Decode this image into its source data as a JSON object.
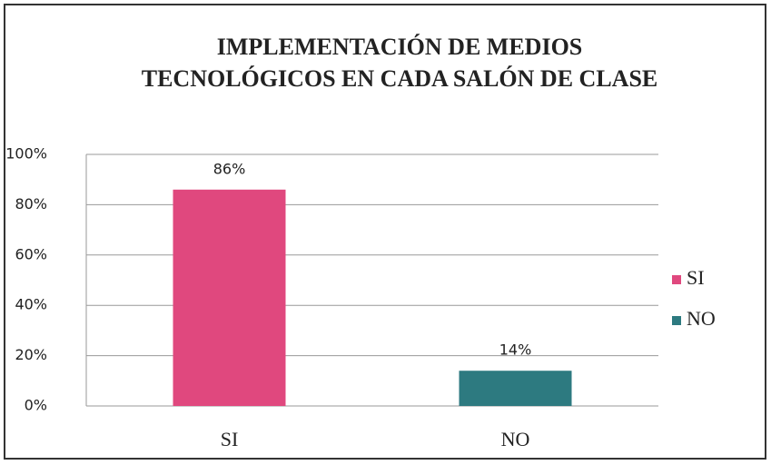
{
  "chart_data": {
    "type": "bar",
    "title": "IMPLEMENTACIÓN DE MEDIOS TECNOLÓGICOS EN CADA SALÓN DE CLASE",
    "categories": [
      "SI",
      "NO"
    ],
    "values": [
      86,
      14
    ],
    "value_labels": [
      "86%",
      "14%"
    ],
    "colors": [
      "#e0487e",
      "#2d7a80"
    ],
    "ylim": [
      0,
      100
    ],
    "yticks": [
      {
        "value": 0,
        "label": "0%"
      },
      {
        "value": 20,
        "label": "20%"
      },
      {
        "value": 40,
        "label": "40%"
      },
      {
        "value": 60,
        "label": "60%"
      },
      {
        "value": 80,
        "label": "80%"
      },
      {
        "value": 100,
        "label": "100%"
      }
    ],
    "grid": true,
    "legend": "right"
  }
}
